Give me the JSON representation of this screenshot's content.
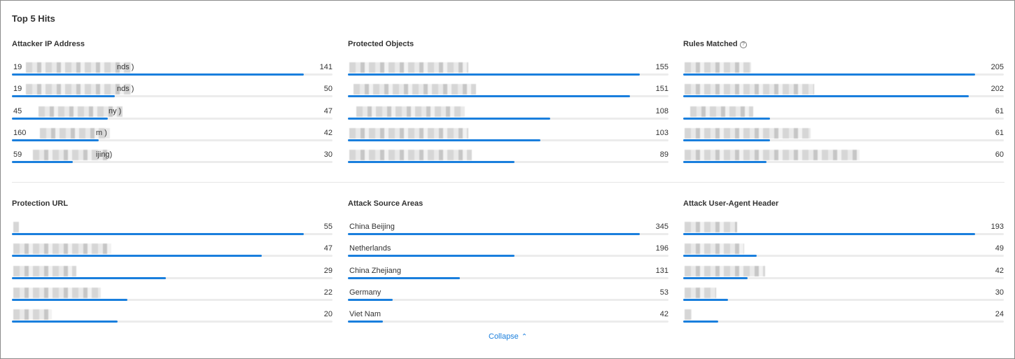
{
  "page_title": "Top 5 Hits",
  "collapse_label": "Collapse",
  "accent_color": "#1a7fdd",
  "panels": [
    {
      "title": "Attacker IP Address",
      "rows": [
        {
          "label": "19",
          "suffix": "nds )",
          "value": "141",
          "fraction": 0.91
        },
        {
          "label": "19",
          "suffix": "nds )",
          "value": "50",
          "fraction": 0.32
        },
        {
          "label": "45",
          "suffix": "ny )",
          "value": "47",
          "fraction": 0.3
        },
        {
          "label": "160",
          "suffix": "m )",
          "value": "42",
          "fraction": 0.27
        },
        {
          "label": "59",
          "suffix": "ijing)",
          "value": "30",
          "fraction": 0.19
        }
      ]
    },
    {
      "title": "Protected Objects",
      "rows": [
        {
          "label": "",
          "suffix": "",
          "value": "155",
          "fraction": 0.91
        },
        {
          "label": "",
          "suffix": "",
          "value": "151",
          "fraction": 0.88
        },
        {
          "label": "",
          "suffix": "",
          "value": "108",
          "fraction": 0.63
        },
        {
          "label": "",
          "suffix": "",
          "value": "103",
          "fraction": 0.6
        },
        {
          "label": "",
          "suffix": "",
          "value": "89",
          "fraction": 0.52
        }
      ]
    },
    {
      "title": "Rules Matched",
      "help_icon": "question-circle-icon",
      "rows": [
        {
          "label": "",
          "suffix": "",
          "value": "205",
          "fraction": 0.91
        },
        {
          "label": "",
          "suffix": "",
          "value": "202",
          "fraction": 0.89
        },
        {
          "label": "",
          "suffix": "",
          "value": "61",
          "fraction": 0.27
        },
        {
          "label": "",
          "suffix": "",
          "value": "61",
          "fraction": 0.27
        },
        {
          "label": "",
          "suffix": "",
          "value": "60",
          "fraction": 0.26
        }
      ]
    },
    {
      "title": "Protection URL",
      "rows": [
        {
          "label": "",
          "suffix": "",
          "value": "55",
          "fraction": 0.91
        },
        {
          "label": "",
          "suffix": "",
          "value": "47",
          "fraction": 0.78
        },
        {
          "label": "",
          "suffix": "",
          "value": "29",
          "fraction": 0.48
        },
        {
          "label": "",
          "suffix": "",
          "value": "22",
          "fraction": 0.36
        },
        {
          "label": "",
          "suffix": "",
          "value": "20",
          "fraction": 0.33
        }
      ]
    },
    {
      "title": "Attack Source Areas",
      "rows": [
        {
          "label": "China Beijing",
          "suffix": "",
          "value": "345",
          "fraction": 0.91
        },
        {
          "label": "Netherlands",
          "suffix": "",
          "value": "196",
          "fraction": 0.52
        },
        {
          "label": "China Zhejiang",
          "suffix": "",
          "value": "131",
          "fraction": 0.35
        },
        {
          "label": "Germany",
          "suffix": "",
          "value": "53",
          "fraction": 0.14
        },
        {
          "label": "Viet Nam",
          "suffix": "",
          "value": "42",
          "fraction": 0.11
        }
      ]
    },
    {
      "title": "Attack User-Agent Header",
      "rows": [
        {
          "label": "",
          "suffix": "",
          "value": "193",
          "fraction": 0.91
        },
        {
          "label": "",
          "suffix": "",
          "value": "49",
          "fraction": 0.23
        },
        {
          "label": "",
          "suffix": "",
          "value": "42",
          "fraction": 0.2
        },
        {
          "label": "",
          "suffix": "",
          "value": "30",
          "fraction": 0.14
        },
        {
          "label": "",
          "suffix": "",
          "value": "24",
          "fraction": 0.11
        }
      ]
    }
  ]
}
